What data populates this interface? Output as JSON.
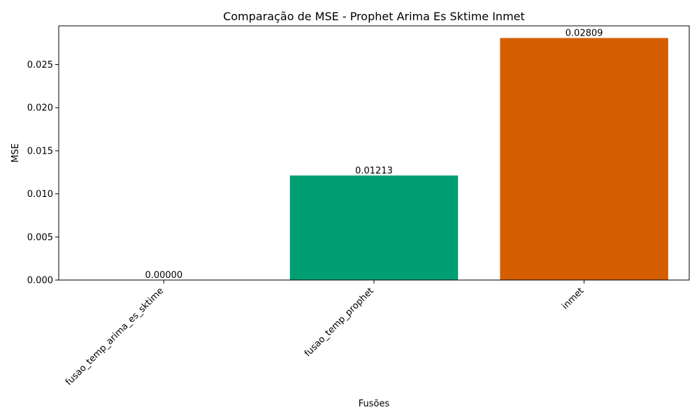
{
  "chart_data": {
    "type": "bar",
    "title": "Comparação de MSE - Prophet Arima Es Sktime Inmet",
    "xlabel": "Fusões",
    "ylabel": "MSE",
    "categories": [
      "fusao_temp_arima_es_sktime",
      "fusao_temp_prophet",
      "inmet"
    ],
    "values": [
      0.0,
      0.01213,
      0.02809
    ],
    "value_labels": [
      "0.00000",
      "0.01213",
      "0.02809"
    ],
    "colors": [
      "#1b9e77",
      "#009e73",
      "#d55e00"
    ],
    "ylim": [
      0,
      0.0295
    ],
    "yticks": [
      0.0,
      0.005,
      0.01,
      0.015,
      0.02,
      0.025
    ],
    "ytick_labels": [
      "0.000",
      "0.005",
      "0.010",
      "0.015",
      "0.020",
      "0.025"
    ],
    "grid": false,
    "legend": "none"
  }
}
